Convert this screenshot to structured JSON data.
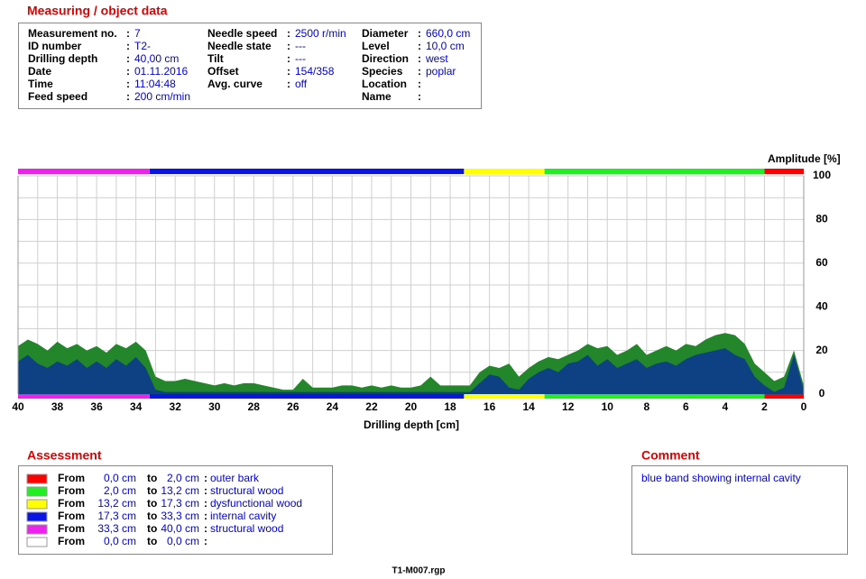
{
  "object_data": {
    "title": "Measuring / object data",
    "separator": ":",
    "columns": [
      [
        {
          "label": "Measurement no.",
          "value": "7"
        },
        {
          "label": "ID number",
          "value": "T2-"
        },
        {
          "label": "Drilling depth",
          "value": "40,00 cm"
        },
        {
          "label": "Date",
          "value": "01.11.2016"
        },
        {
          "label": "Time",
          "value": "11:04:48"
        },
        {
          "label": "Feed speed",
          "value": "200 cm/min"
        }
      ],
      [
        {
          "label": "Needle speed",
          "value": "2500 r/min"
        },
        {
          "label": "Needle state",
          "value": "---"
        },
        {
          "label": "Tilt",
          "value": "---"
        },
        {
          "label": "Offset",
          "value": "154/358"
        },
        {
          "label": "Avg. curve",
          "value": "off"
        }
      ],
      [
        {
          "label": "Diameter",
          "value": "660,0 cm"
        },
        {
          "label": "Level",
          "value": "10,0 cm"
        },
        {
          "label": "Direction",
          "value": "west"
        },
        {
          "label": "Species",
          "value": "poplar"
        },
        {
          "label": "Location"
        },
        {
          "label": "Name"
        }
      ]
    ]
  },
  "chart_data": {
    "type": "area",
    "x_label": "Drilling depth [cm]",
    "y_label": "Amplitude [%]",
    "xlim": [
      40,
      0
    ],
    "ylim": [
      0,
      100
    ],
    "xticks": [
      40,
      38,
      36,
      34,
      32,
      30,
      28,
      26,
      24,
      22,
      20,
      18,
      16,
      14,
      12,
      10,
      8,
      6,
      4,
      2,
      0
    ],
    "yticks": [
      0,
      20,
      40,
      60,
      80,
      100
    ],
    "grid": true,
    "x": [
      40,
      39.5,
      39,
      38.5,
      38,
      37.5,
      37,
      36.5,
      36,
      35.5,
      35,
      34.5,
      34,
      33.5,
      33,
      32.5,
      32,
      31.5,
      31,
      30.5,
      30,
      29.5,
      29,
      28.5,
      28,
      27.5,
      27,
      26.5,
      26,
      25.5,
      25,
      24.5,
      24,
      23.5,
      23,
      22.5,
      22,
      21.5,
      21,
      20.5,
      20,
      19.5,
      19,
      18.5,
      18,
      17.5,
      17,
      16.5,
      16,
      15.5,
      15,
      14.5,
      14,
      13.5,
      13,
      12.5,
      12,
      11.5,
      11,
      10.5,
      10,
      9.5,
      9,
      8.5,
      8,
      7.5,
      7,
      6.5,
      6,
      5.5,
      5,
      4.5,
      4,
      3.5,
      3,
      2.5,
      2,
      1.5,
      1,
      0.5,
      0
    ],
    "series": [
      {
        "color": "#23862a",
        "values": [
          22,
          25,
          23,
          20,
          24,
          21,
          23,
          20,
          22,
          19,
          23,
          21,
          24,
          20,
          8,
          6,
          6,
          7,
          6,
          5,
          4,
          5,
          4,
          5,
          5,
          4,
          3,
          2,
          2,
          7,
          3,
          3,
          3,
          4,
          4,
          3,
          4,
          3,
          4,
          3,
          3,
          4,
          8,
          4,
          4,
          4,
          4,
          10,
          13,
          12,
          14,
          8,
          12,
          15,
          17,
          16,
          18,
          20,
          23,
          21,
          22,
          18,
          20,
          23,
          18,
          20,
          22,
          20,
          23,
          22,
          25,
          27,
          28,
          27,
          23,
          14,
          10,
          6,
          8,
          20,
          4
        ]
      },
      {
        "color": "#0e4184",
        "values": [
          15,
          18,
          14,
          12,
          15,
          13,
          16,
          12,
          15,
          12,
          16,
          13,
          17,
          12,
          2,
          1,
          1,
          1,
          1,
          1,
          1,
          1,
          1,
          1,
          1,
          1,
          1,
          1,
          1,
          1,
          1,
          1,
          1,
          1,
          1,
          1,
          1,
          1,
          1,
          1,
          1,
          1,
          1,
          1,
          1,
          1,
          1,
          5,
          9,
          8,
          3,
          2,
          7,
          10,
          12,
          10,
          14,
          15,
          18,
          13,
          16,
          12,
          14,
          16,
          12,
          14,
          15,
          13,
          16,
          18,
          19,
          20,
          21,
          18,
          16,
          8,
          4,
          1,
          3,
          18,
          2
        ]
      }
    ]
  },
  "assessment": {
    "title": "Assessment",
    "from_label": "From",
    "to_label": "to",
    "separator": ":",
    "rows": [
      {
        "color": "#ff0000",
        "from": {
          "value": 0,
          "label": "0,0 cm"
        },
        "to": {
          "value": 2,
          "label": "2,0 cm"
        },
        "text": "outer bark"
      },
      {
        "color": "#22ee22",
        "from": {
          "value": 2,
          "label": "2,0 cm"
        },
        "to": {
          "value": 13.2,
          "label": "13,2 cm"
        },
        "text": "structural wood"
      },
      {
        "color": "#ffff00",
        "from": {
          "value": 13.2,
          "label": "13,2 cm"
        },
        "to": {
          "value": 17.3,
          "label": "17,3 cm"
        },
        "text": "dysfunctional wood"
      },
      {
        "color": "#0a14e6",
        "from": {
          "value": 17.3,
          "label": "17,3 cm"
        },
        "to": {
          "value": 33.3,
          "label": "33,3 cm"
        },
        "text": "internal cavity"
      },
      {
        "color": "#ee22ee",
        "from": {
          "value": 33.3,
          "label": "33,3 cm"
        },
        "to": {
          "value": 40,
          "label": "40,0 cm"
        },
        "text": "structural wood"
      },
      {
        "color": "#ffffff",
        "from": {
          "value": 0,
          "label": "0,0 cm"
        },
        "to": {
          "value": 0,
          "label": "0,0 cm"
        }
      }
    ]
  },
  "comment": {
    "title": "Comment",
    "text": "blue band showing internal cavity"
  },
  "footer": "T1-M007.rgp"
}
